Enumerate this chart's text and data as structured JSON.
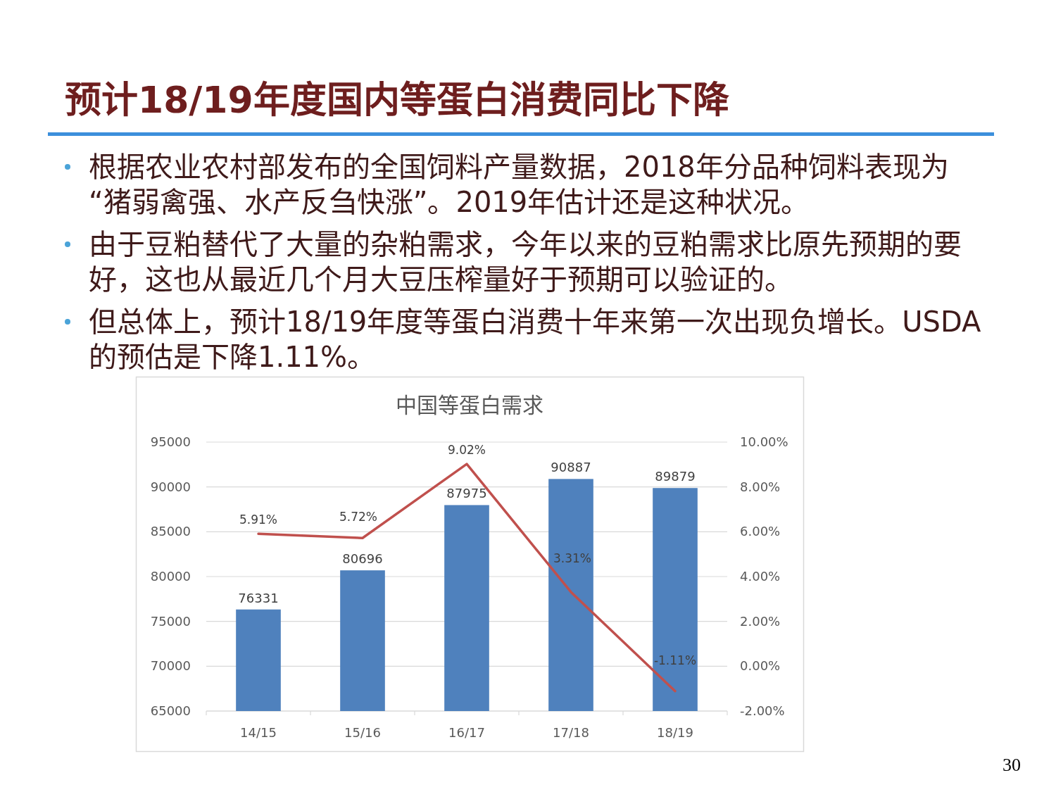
{
  "chart_data": {
    "type": "bar",
    "title": "预计18/19年度国内等蛋白消费同比下降",
    "subtitle": "中国等蛋白需求",
    "annotations": [
      "根据农业农村部发布的全国饲料产量数据，2018年分品种饲料表现为“猪弱禽强、水产反刍快涨”。2019年估计还是这种状况。",
      "由于豆粕替代了大量的杂粕需求，今年以来的豆粕需求比原先预期的要好，这也从最近几个月大豆压榨量好于预期可以验证的。",
      "但总体上，预计18/19年度等蛋白消费十年来第一次出现负增长。USDA的预估是下降1.11%。",
      "30"
    ],
    "categories": [
      "14/15",
      "15/16",
      "16/17",
      "17/18",
      "18/19"
    ],
    "series": [
      {
        "color": "#4f81bd",
        "values": [
          76331,
          80696,
          87975,
          90887,
          89879
        ],
        "value_labels": [
          "76331",
          "80696",
          "87975",
          "90887",
          "89879"
        ]
      },
      {
        "type": "line",
        "axis": "y2",
        "color": "#c0504d",
        "values": [
          5.91,
          5.72,
          9.02,
          3.31,
          -1.11
        ],
        "value_labels": [
          "5.91%",
          "5.72%",
          "9.02%",
          "3.31%",
          "-1.11%"
        ]
      }
    ],
    "ylim": [
      65000,
      95000
    ],
    "yticks": [
      65000,
      70000,
      75000,
      80000,
      85000,
      90000,
      95000
    ],
    "y2lim": [
      -2,
      10
    ],
    "y2ticks": [
      {
        "value": -2,
        "label": "-2.00%"
      },
      {
        "value": 0,
        "label": "0.00%"
      },
      {
        "value": 2,
        "label": "2.00%"
      },
      {
        "value": 4,
        "label": "4.00%"
      },
      {
        "value": 6,
        "label": "6.00%"
      },
      {
        "value": 8,
        "label": "8.00%"
      },
      {
        "value": 10,
        "label": "10.00%"
      }
    ],
    "grid": "y"
  }
}
